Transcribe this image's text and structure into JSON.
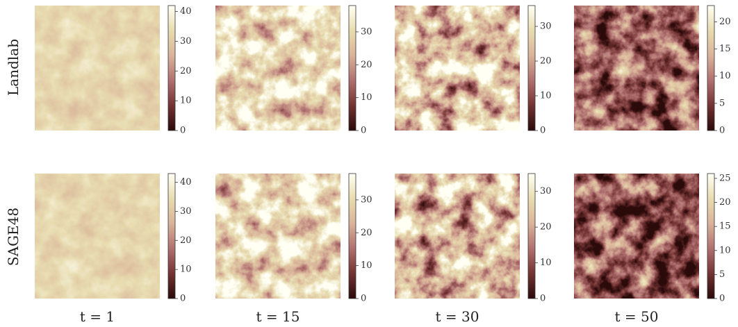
{
  "rows": [
    "Landlab",
    "SAGE48"
  ],
  "columns": [
    "t = 1",
    "t = 15",
    "t = 30",
    "t = 50"
  ],
  "panels": [
    [
      {
        "lim": [
          0,
          42
        ],
        "ticks": [
          0,
          10,
          20,
          30,
          40
        ]
      },
      {
        "lim": [
          0,
          38
        ],
        "ticks": [
          0,
          10,
          20,
          30
        ]
      },
      {
        "lim": [
          0,
          36
        ],
        "ticks": [
          0,
          10,
          20,
          30
        ]
      },
      {
        "lim": [
          0,
          23
        ],
        "ticks": [
          0,
          5,
          10,
          15,
          20
        ]
      }
    ],
    [
      {
        "lim": [
          0,
          43
        ],
        "ticks": [
          0,
          10,
          20,
          30,
          40
        ]
      },
      {
        "lim": [
          0,
          38
        ],
        "ticks": [
          0,
          10,
          20,
          30
        ]
      },
      {
        "lim": [
          0,
          35
        ],
        "ticks": [
          0,
          10,
          20,
          30
        ]
      },
      {
        "lim": [
          0,
          26
        ],
        "ticks": [
          0,
          5,
          10,
          15,
          20,
          25
        ]
      }
    ]
  ]
}
